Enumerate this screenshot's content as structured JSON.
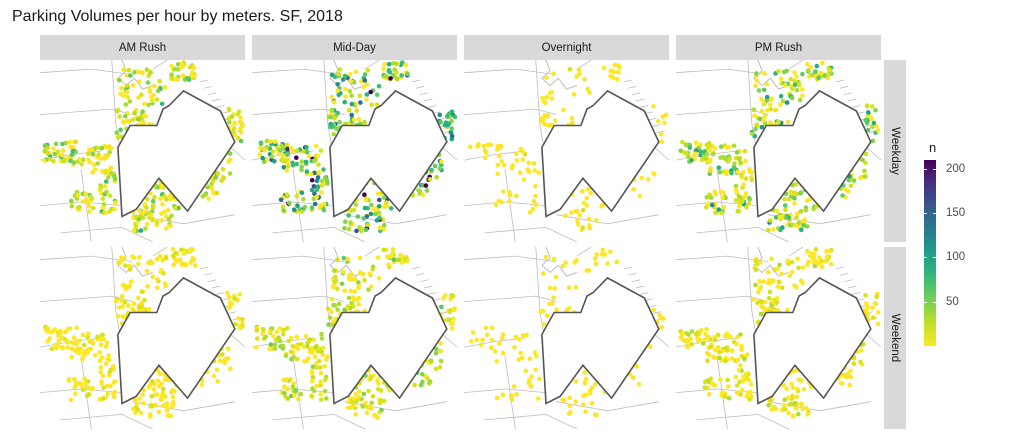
{
  "title": "Parking Volumes per hour by meters. SF, 2018",
  "facets": {
    "columns": [
      "AM Rush",
      "Mid-Day",
      "Overnight",
      "PM Rush"
    ],
    "rows": [
      "Weekday",
      "Weekend"
    ]
  },
  "legend": {
    "title": "n",
    "ticks": [
      {
        "label": "50",
        "value": 50
      },
      {
        "label": "100",
        "value": 100
      },
      {
        "label": "150",
        "value": 150
      },
      {
        "label": "200",
        "value": 200
      }
    ],
    "range": [
      0,
      210
    ],
    "palette": "viridis"
  },
  "colors": {
    "low": "#fde725",
    "mid": "#35b779",
    "high": "#31688e",
    "max": "#440154",
    "strip": "#d9d9d9",
    "streets": "#bdbdbd",
    "boundary": "#555555"
  },
  "panel_intensity": {
    "AM Rush|Weekday": 0.25,
    "Mid-Day|Weekday": 0.55,
    "Overnight|Weekday": 0.05,
    "PM Rush|Weekday": 0.35,
    "AM Rush|Weekend": 0.08,
    "Mid-Day|Weekend": 0.2,
    "Overnight|Weekend": 0.04,
    "PM Rush|Weekend": 0.12
  }
}
